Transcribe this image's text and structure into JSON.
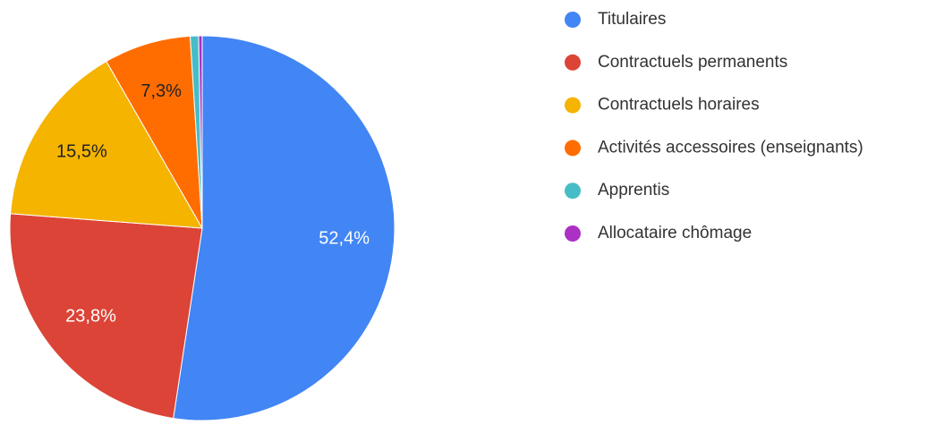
{
  "chart_data": {
    "type": "pie",
    "categories": [
      "Titulaires",
      "Contractuels permanents",
      "Contractuels horaires",
      "Activités accessoires (enseignants)",
      "Apprentis",
      "Allocataire chômage"
    ],
    "values": [
      52.4,
      23.8,
      15.5,
      7.3,
      0.7,
      0.3
    ],
    "value_labels": [
      "52,4%",
      "23,8%",
      "15,5%",
      "7,3%",
      null,
      null
    ],
    "colors": [
      "#4285f4",
      "#db4437",
      "#f4b400",
      "#ff6d01",
      "#46bdc6",
      "#ab30c4"
    ],
    "legend": "right"
  }
}
